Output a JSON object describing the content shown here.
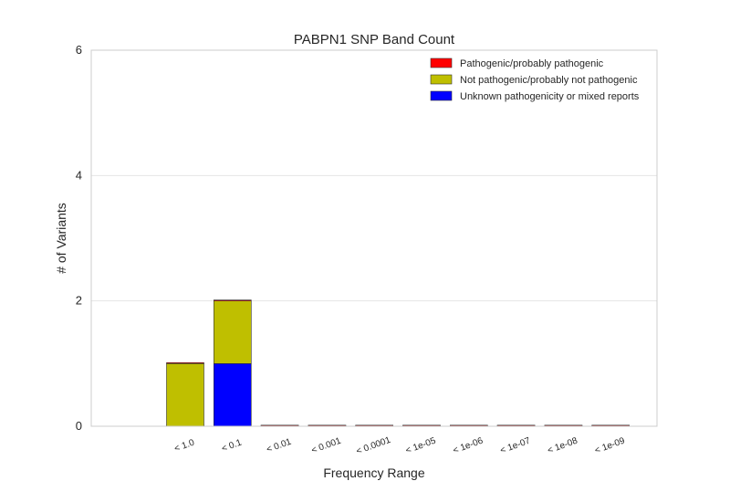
{
  "chart_data": {
    "type": "bar",
    "stacked": true,
    "title": "PABPN1 SNP Band Count",
    "xlabel": "Frequency Range",
    "ylabel": "# of Variants",
    "ylim": [
      0,
      6
    ],
    "yticks": [
      "0",
      "2",
      "4",
      "6"
    ],
    "grid": "horizontal",
    "legend_position": "top-right",
    "categories": [
      "< 1.0",
      "< 0.1",
      "< 0.01",
      "< 0.001",
      "< 0.0001",
      "< 1e-05",
      "< 1e-06",
      "< 1e-07",
      "< 1e-08",
      "< 1e-09"
    ],
    "series": [
      {
        "name": "Pathogenic/probably pathogenic",
        "color": "#ff0000",
        "values": [
          0,
          0,
          0,
          0,
          0,
          0,
          0,
          0,
          0,
          0
        ]
      },
      {
        "name": "Not pathogenic/probably not pathogenic",
        "color": "#bfbf00",
        "values": [
          1,
          1,
          0,
          0,
          0,
          0,
          0,
          0,
          0,
          0
        ]
      },
      {
        "name": "Unknown pathogenicity or mixed reports",
        "color": "#0000ff",
        "values": [
          0,
          1,
          0,
          0,
          0,
          0,
          0,
          0,
          0,
          0
        ]
      }
    ],
    "stack_order": [
      2,
      1,
      0
    ]
  }
}
